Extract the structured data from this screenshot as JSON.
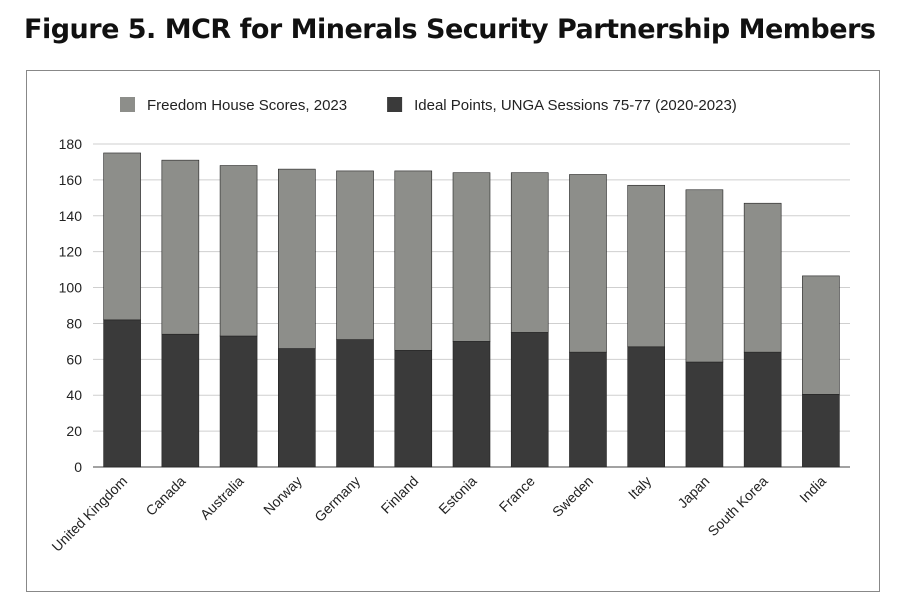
{
  "title": "Figure 5. MCR for Minerals Security Partnership Members",
  "chart_data": {
    "type": "bar",
    "stacked": true,
    "title": "Figure 5. MCR for Minerals Security Partnership Members",
    "xlabel": "",
    "ylabel": "",
    "ylim": [
      0,
      180
    ],
    "yticks": [
      0,
      20,
      40,
      60,
      80,
      100,
      120,
      140,
      160,
      180
    ],
    "grid": true,
    "legend_position": "top",
    "categories": [
      "United Kingdom",
      "Canada",
      "Australia",
      "Norway",
      "Germany",
      "Finland",
      "Estonia",
      "France",
      "Sweden",
      "Italy",
      "Japan",
      "South Korea",
      "India"
    ],
    "series": [
      {
        "name": "Ideal Points, UNGA Sessions 75-77 (2020-2023)",
        "color": "#3a3a3a",
        "values": [
          82,
          74,
          73,
          66,
          71,
          65,
          70,
          75,
          64,
          67,
          58.5,
          64,
          40.5
        ]
      },
      {
        "name": "Freedom House Scores, 2023",
        "color": "#8d8e8a",
        "values": [
          93,
          97,
          95,
          100,
          94,
          100,
          94,
          89,
          99,
          90,
          96,
          83,
          66
        ]
      }
    ],
    "legend_order": [
      1,
      0
    ]
  }
}
